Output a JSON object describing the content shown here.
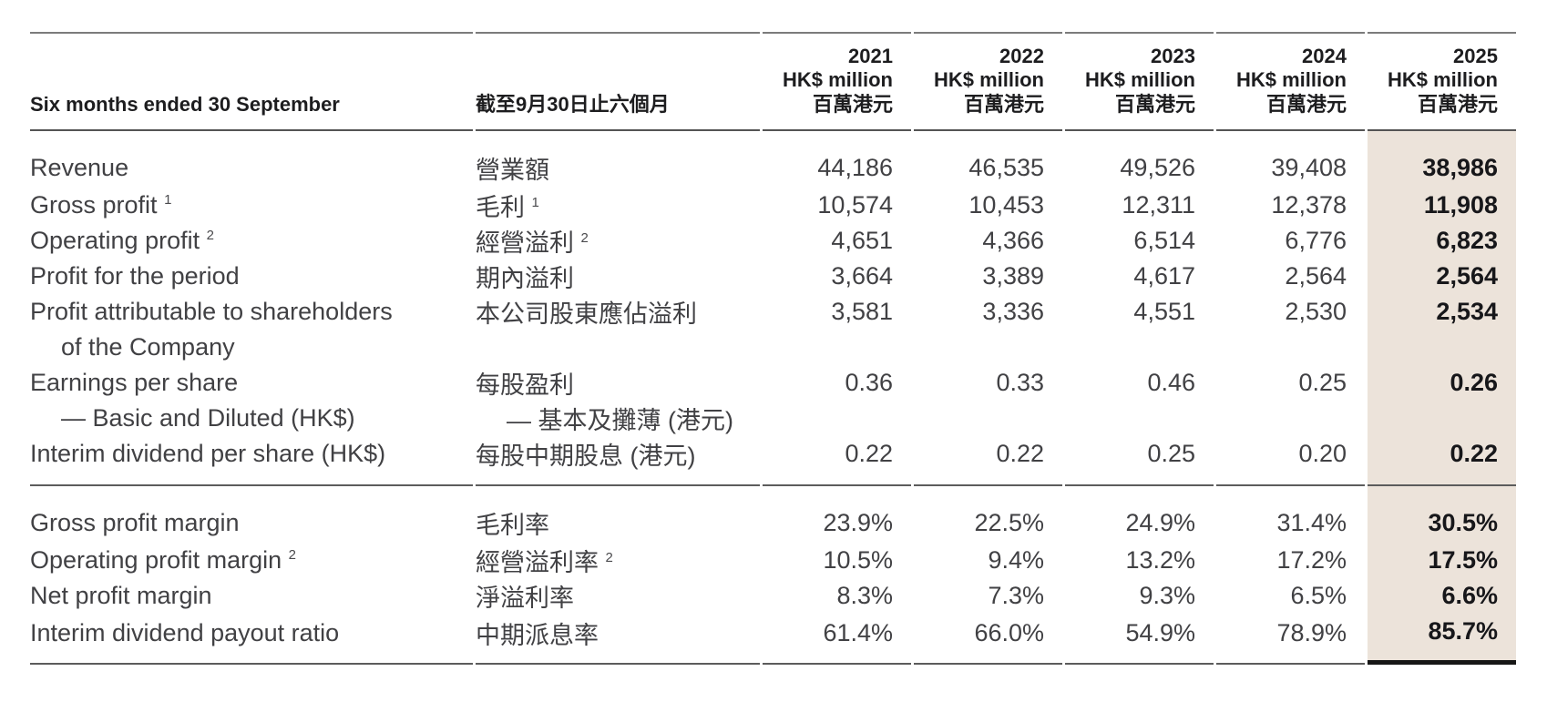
{
  "header": {
    "col_en": "Six months ended 30 September",
    "col_zh": "截至9月30日止六個月",
    "years": [
      {
        "year": "2021",
        "unit_en": "HK$ million",
        "unit_zh": "百萬港元"
      },
      {
        "year": "2022",
        "unit_en": "HK$ million",
        "unit_zh": "百萬港元"
      },
      {
        "year": "2023",
        "unit_en": "HK$ million",
        "unit_zh": "百萬港元"
      },
      {
        "year": "2024",
        "unit_en": "HK$ million",
        "unit_zh": "百萬港元"
      },
      {
        "year": "2025",
        "unit_en": "HK$ million",
        "unit_zh": "百萬港元",
        "highlight": true
      }
    ]
  },
  "sections": [
    {
      "rows": [
        {
          "en": "Revenue",
          "zh": "營業額",
          "values": [
            "44,186",
            "46,535",
            "49,526",
            "39,408",
            "38,986"
          ]
        },
        {
          "en": "Gross profit",
          "sup_en": "1",
          "zh": "毛利",
          "sup_zh": "1",
          "values": [
            "10,574",
            "10,453",
            "12,311",
            "12,378",
            "11,908"
          ]
        },
        {
          "en": "Operating profit",
          "sup_en": "2",
          "zh": "經營溢利",
          "sup_zh": "2",
          "values": [
            "4,651",
            "4,366",
            "6,514",
            "6,776",
            "6,823"
          ]
        },
        {
          "en": "Profit for the period",
          "zh": "期內溢利",
          "values": [
            "3,664",
            "3,389",
            "4,617",
            "2,564",
            "2,564"
          ]
        },
        {
          "en": "Profit attributable to shareholders",
          "en2": "of the Company",
          "zh": "本公司股東應佔溢利",
          "values": [
            "3,581",
            "3,336",
            "4,551",
            "2,530",
            "2,534"
          ]
        },
        {
          "en": "Earnings per share",
          "en2": "— Basic and Diluted (HK$)",
          "zh": "每股盈利",
          "zh2": "— 基本及攤薄 (港元)",
          "values": [
            "0.36",
            "0.33",
            "0.46",
            "0.25",
            "0.26"
          ]
        },
        {
          "en": "Interim dividend per share (HK$)",
          "zh": "每股中期股息 (港元)",
          "values": [
            "0.22",
            "0.22",
            "0.25",
            "0.20",
            "0.22"
          ]
        }
      ]
    },
    {
      "rows": [
        {
          "en": "Gross profit margin",
          "zh": "毛利率",
          "values": [
            "23.9%",
            "22.5%",
            "24.9%",
            "31.4%",
            "30.5%"
          ]
        },
        {
          "en": "Operating profit margin",
          "sup_en": "2",
          "zh": "經營溢利率",
          "sup_zh": "2",
          "values": [
            "10.5%",
            "9.4%",
            "13.2%",
            "17.2%",
            "17.5%"
          ]
        },
        {
          "en": "Net profit margin",
          "zh": "淨溢利率",
          "values": [
            "8.3%",
            "7.3%",
            "9.3%",
            "6.5%",
            "6.6%"
          ]
        },
        {
          "en": "Interim dividend payout ratio",
          "zh": "中期派息率",
          "values": [
            "61.4%",
            "66.0%",
            "54.9%",
            "78.9%",
            "85.7%"
          ]
        }
      ]
    }
  ],
  "colors": {
    "highlight_bg": "#ece3da",
    "text_dark": "#1d1d1f",
    "text_light": "#414144",
    "rule_gray": "#7b7b7b",
    "rule_dark": "#545454",
    "rule_black": "#161616"
  }
}
